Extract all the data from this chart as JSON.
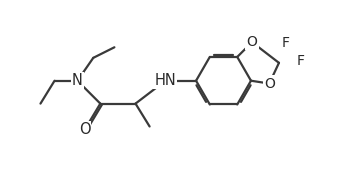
{
  "background": "#ffffff",
  "line_color": "#3a3a3a",
  "line_width": 1.6,
  "font_size": 10.5,
  "label_color": "#2a2a2a",
  "xlim": [
    -0.5,
    9.5
  ],
  "ylim": [
    0.5,
    5.2
  ]
}
